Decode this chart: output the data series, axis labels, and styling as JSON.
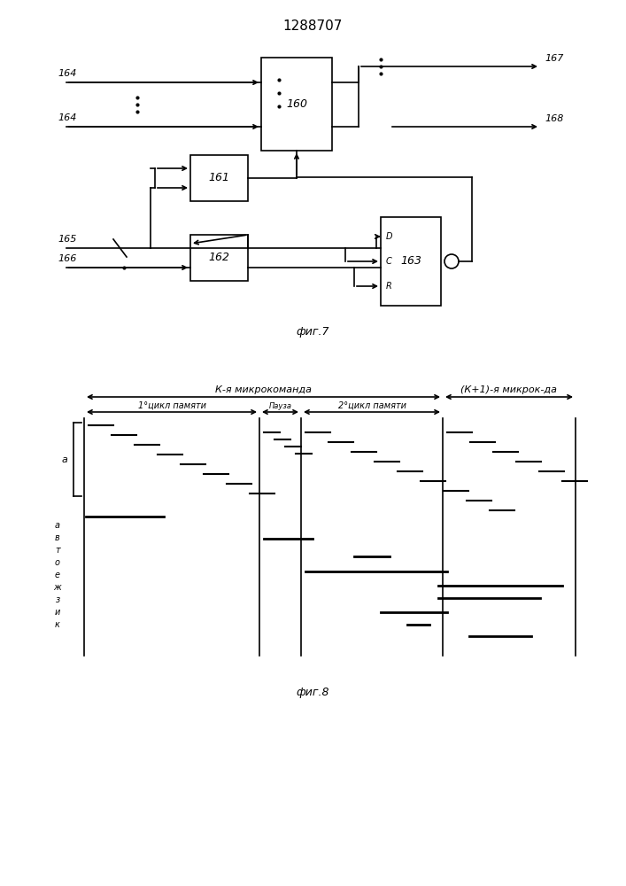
{
  "title": "1288707",
  "fig7_caption": "фиг.7",
  "fig8_caption": "фиг.8",
  "bg_color": "#ffffff",
  "line_color": "#000000"
}
